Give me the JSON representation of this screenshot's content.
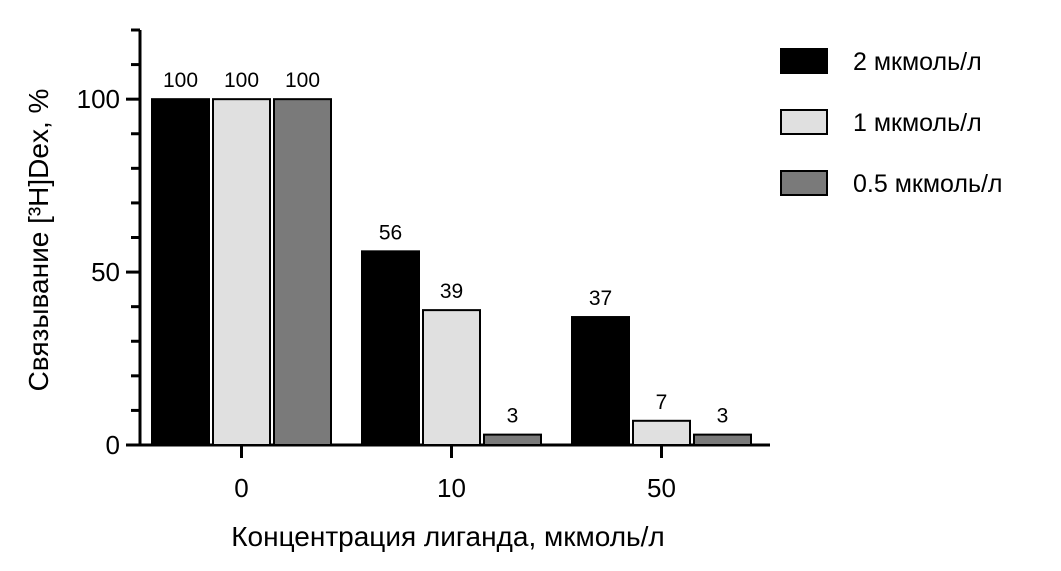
{
  "chart_data": {
    "type": "bar",
    "xlabel": "Концентрация лиганда, мкмоль/л",
    "ylabel": "Связывание [³H]Dex, %",
    "categories": [
      "0",
      "10",
      "50"
    ],
    "ylim": [
      0,
      120
    ],
    "yticks": [
      "0",
      "50",
      "100"
    ],
    "legend_position": "top-right",
    "series": [
      {
        "name": "2 мкмоль/л",
        "color": "#000000",
        "values": [
          100,
          56,
          37
        ]
      },
      {
        "name": "1 мкмоль/л",
        "color": "#e0e0e0",
        "values": [
          100,
          39,
          7
        ]
      },
      {
        "name": "0.5 мкмоль/л",
        "color": "#7a7a7a",
        "values": [
          100,
          3,
          3
        ]
      }
    ]
  }
}
